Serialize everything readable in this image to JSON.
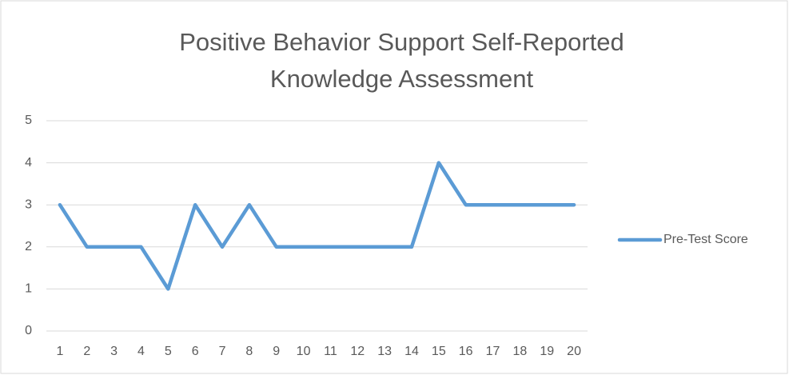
{
  "chart_data": {
    "type": "line",
    "title": "Positive Behavior Support Self-Reported Knowledge Assessment",
    "categories": [
      1,
      2,
      3,
      4,
      5,
      6,
      7,
      8,
      9,
      10,
      11,
      12,
      13,
      14,
      15,
      16,
      17,
      18,
      19,
      20
    ],
    "series": [
      {
        "name": "Pre-Test Score",
        "color": "#5b9bd5",
        "values": [
          3,
          2,
          2,
          2,
          1,
          3,
          2,
          3,
          2,
          2,
          2,
          2,
          2,
          2,
          4,
          3,
          3,
          3,
          3,
          3
        ]
      }
    ],
    "ylim": [
      0,
      5
    ],
    "yticks": [
      0,
      1,
      2,
      3,
      4,
      5
    ],
    "grid": true,
    "legend": "right"
  }
}
